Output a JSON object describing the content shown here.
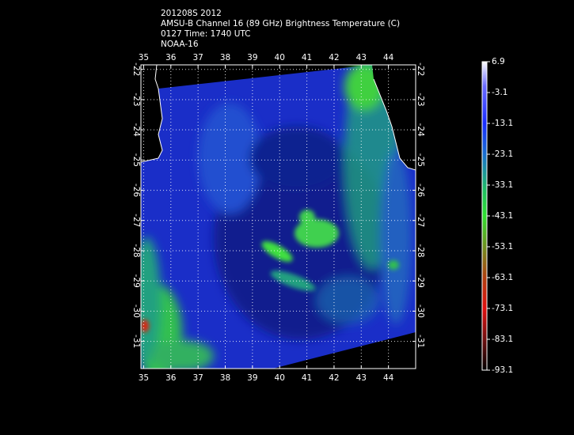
{
  "title_lines": [
    "201208S 2012",
    "AMSU-B Channel 16 (89 GHz) Brightness Temperature (C)",
    "0127 Time: 1740 UTC",
    "NOAA-16"
  ],
  "map": {
    "lonlim": [
      34.9,
      45
    ],
    "latlim": [
      -21.85,
      -31.9
    ],
    "lon_ticks": [
      35,
      36,
      37,
      38,
      39,
      40,
      41,
      42,
      43,
      44
    ],
    "lat_ticks": [
      -22,
      -23,
      -24,
      -25,
      -26,
      -27,
      -28,
      -29,
      -30,
      -31
    ]
  },
  "colorbar": {
    "lim": [
      6.9,
      -93.1
    ],
    "ticks": [
      6.9,
      -3.1,
      -13.1,
      -23.1,
      -33.1,
      -43.1,
      -53.1,
      -63.1,
      -73.1,
      -83.1,
      -93.1
    ]
  }
}
